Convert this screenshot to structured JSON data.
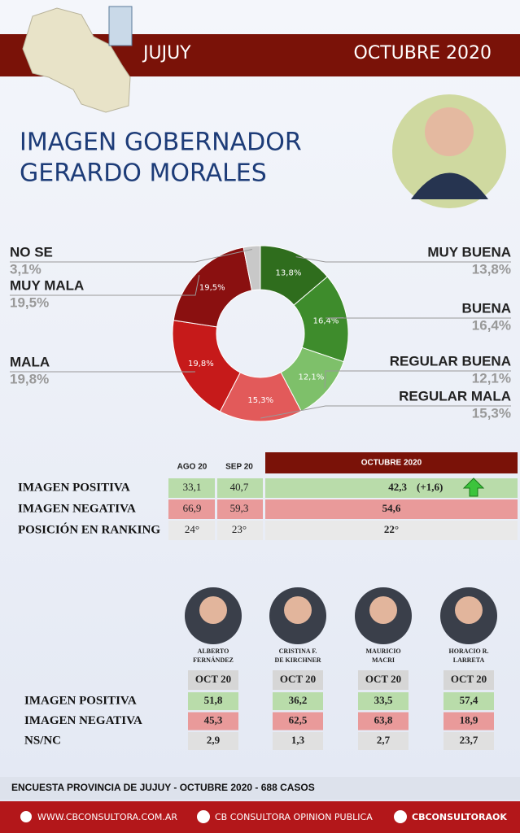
{
  "header": {
    "region": "JUJUY",
    "date": "OCTUBRE 2020"
  },
  "title": [
    "IMAGEN GOBERNADOR",
    "GERARDO MORALES"
  ],
  "chart_data": {
    "type": "pie",
    "categories": [
      "MUY BUENA",
      "BUENA",
      "REGULAR BUENA",
      "REGULAR MALA",
      "MALA",
      "MUY MALA",
      "NO SE"
    ],
    "values": [
      13.8,
      16.4,
      12.1,
      15.3,
      19.8,
      19.5,
      3.1
    ],
    "value_labels": [
      "13,8%",
      "16,4%",
      "12,1%",
      "15,3%",
      "19,8%",
      "19,5%",
      "3,1%"
    ],
    "colors": [
      "#2f6d1d",
      "#3e8c2c",
      "#7ec06a",
      "#e25a5a",
      "#c61a1a",
      "#8a1010",
      "#c8c8c8"
    ]
  },
  "table": {
    "headers": [
      "AGO 20",
      "SEP 20",
      "OCTUBRE 2020"
    ],
    "rows": [
      [
        "IMAGEN POSITIVA",
        "33,1",
        "40,7",
        "42,3",
        "(+1,6)"
      ],
      [
        "IMAGEN NEGATIVA",
        "66,9",
        "59,3",
        "54,6"
      ],
      [
        "POSICIÓN EN RANKING",
        "24°",
        "23°",
        "22°"
      ]
    ]
  },
  "leaders": {
    "row_labels": [
      "IMAGEN POSITIVA",
      "IMAGEN NEGATIVA",
      "NS/NC"
    ],
    "people": [
      {
        "name": [
          "ALBERTO",
          "FERNÁNDEZ"
        ],
        "period": "OCT 20",
        "values": [
          "51,8",
          "45,3",
          "2,9"
        ]
      },
      {
        "name": [
          "CRISTINA F.",
          "DE KIRCHNER"
        ],
        "period": "OCT 20",
        "values": [
          "36,2",
          "62,5",
          "1,3"
        ]
      },
      {
        "name": [
          "MAURICIO",
          "MACRI"
        ],
        "period": "OCT 20",
        "values": [
          "33,5",
          "63,8",
          "2,7"
        ]
      },
      {
        "name": [
          "HORACIO R.",
          "LARRETA"
        ],
        "period": "OCT 20",
        "values": [
          "57,4",
          "18,9",
          "23,7"
        ]
      }
    ]
  },
  "footer": {
    "note": "ENCUESTA PROVINCIA DE JUJUY - OCTUBRE 2020 -  688 CASOS",
    "web": "WWW.CBCONSULTORA.COM.AR",
    "facebook": "CB CONSULTORA OPINION PUBLICA",
    "twitter": "CBCONSULTORAOK"
  }
}
